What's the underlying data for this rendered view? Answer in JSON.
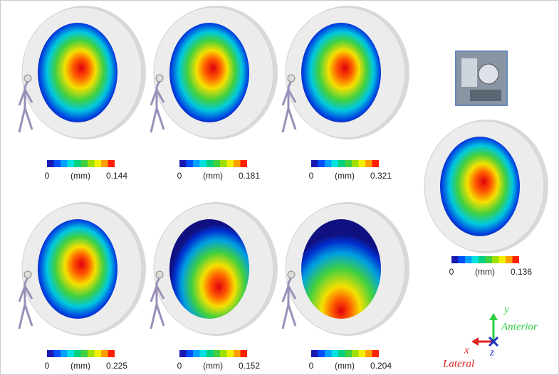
{
  "panels": [
    {
      "min": "0",
      "unit": "(mm)",
      "max": "0.144"
    },
    {
      "min": "0",
      "unit": "(mm)",
      "max": "0.181"
    },
    {
      "min": "0",
      "unit": "(mm)",
      "max": "0.321"
    },
    {
      "min": "0",
      "unit": "(mm)",
      "max": "0.225"
    },
    {
      "min": "0",
      "unit": "(mm)",
      "max": "0.152"
    },
    {
      "min": "0",
      "unit": "(mm)",
      "max": "0.204"
    },
    {
      "min": "0",
      "unit": "(mm)",
      "max": "0.136"
    }
  ],
  "axes": {
    "y": "y",
    "y_label": "Anterior",
    "x": "x",
    "x_label": "Lateral",
    "z": "z"
  }
}
